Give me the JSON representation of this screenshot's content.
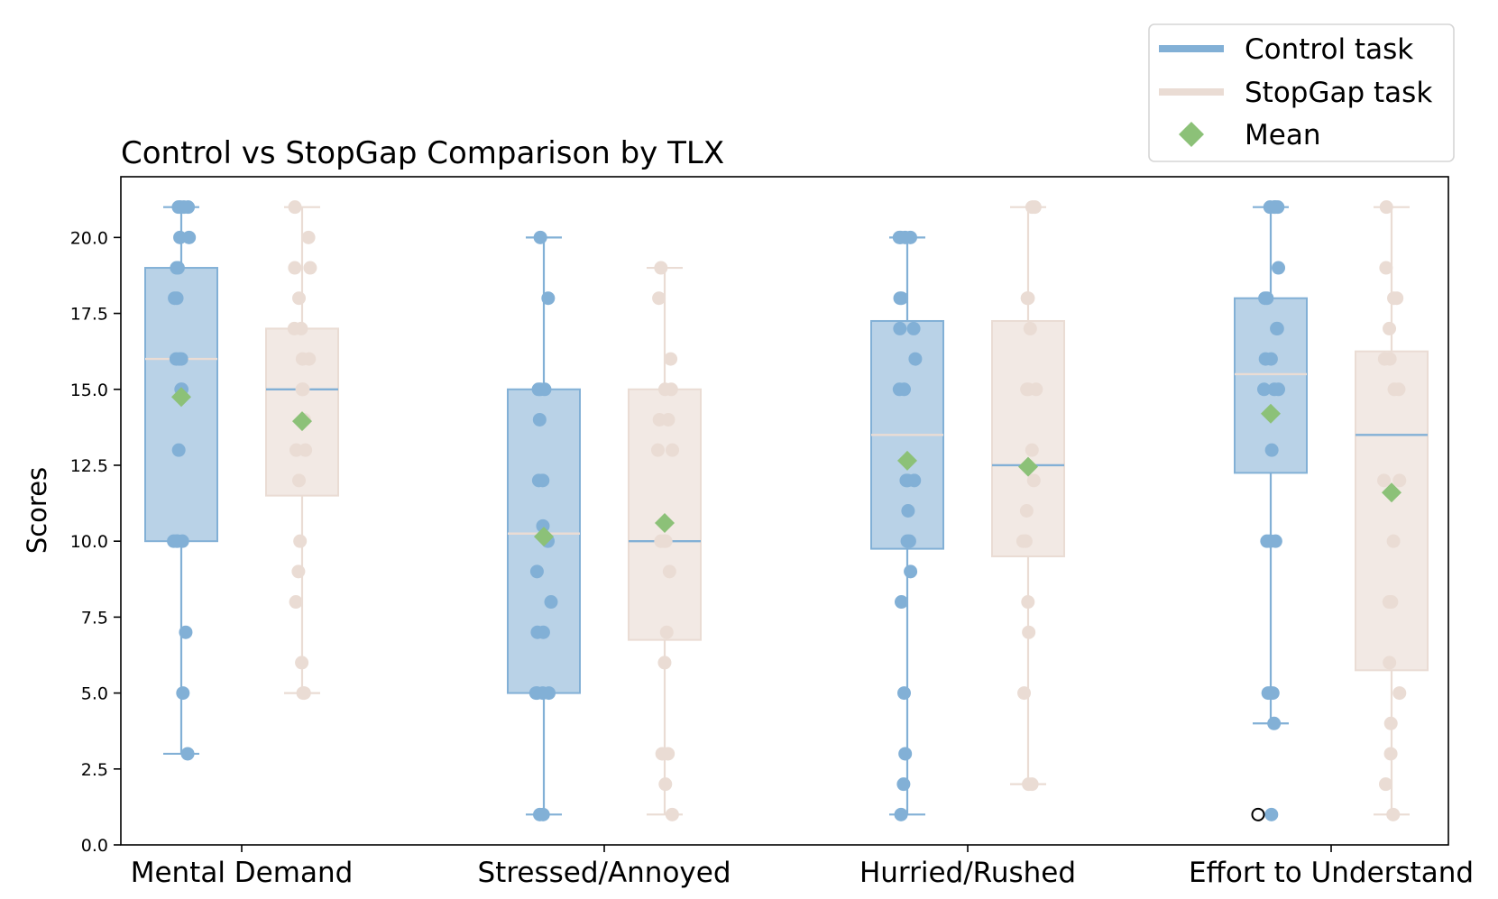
{
  "chart_data": {
    "type": "box",
    "title": "Control vs StopGap Comparison by TLX",
    "xlabel": "",
    "ylabel": "Scores",
    "ylim": [
      0,
      22
    ],
    "yticks": [
      0.0,
      2.5,
      5.0,
      7.5,
      10.0,
      12.5,
      15.0,
      17.5,
      20.0
    ],
    "ytick_labels": [
      "0.0",
      "2.5",
      "5.0",
      "7.5",
      "10.0",
      "12.5",
      "15.0",
      "17.5",
      "20.0"
    ],
    "grid": false,
    "legend_position": "top-right (above plot)",
    "categories": [
      "Mental Demand",
      "Stressed/Annoyed",
      "Hurried/Rushed",
      "Effort to Understand"
    ],
    "series": [
      {
        "name": "Control task",
        "color": "#82b0d6",
        "box_fill": "#b5d0e6",
        "median_color": "#eadcd4",
        "boxes": [
          {
            "whislo": 3,
            "q1": 10,
            "median": 16,
            "q3": 19,
            "whishi": 21,
            "mean": 14.75
          },
          {
            "whislo": 1,
            "q1": 5,
            "median": 10.25,
            "q3": 15,
            "whishi": 20,
            "mean": 10.15
          },
          {
            "whislo": 1,
            "q1": 9.75,
            "median": 13.5,
            "q3": 17.25,
            "whishi": 20,
            "mean": 12.65
          },
          {
            "whislo": 4,
            "q1": 12.25,
            "median": 15.5,
            "q3": 18,
            "whishi": 21,
            "mean": 14.2
          }
        ],
        "points": [
          [
            21,
            21,
            21,
            21,
            20,
            20,
            19,
            19,
            18,
            18,
            16,
            16,
            16,
            15,
            15,
            13,
            10,
            10,
            10,
            10,
            7,
            5,
            3
          ],
          [
            20,
            18,
            15,
            15,
            15,
            14,
            12,
            12,
            10.5,
            10,
            9,
            8,
            7,
            7,
            5,
            5,
            5,
            5,
            1,
            1
          ],
          [
            20,
            20,
            20,
            20,
            18,
            18,
            17,
            17,
            16,
            15,
            15,
            12,
            12,
            12,
            11,
            10,
            10,
            9,
            8,
            5,
            3,
            2,
            1
          ],
          [
            21,
            21,
            21,
            21,
            19,
            18,
            18,
            17,
            17,
            16,
            16,
            15,
            15,
            15,
            13,
            10,
            10,
            10,
            5,
            5,
            5,
            4,
            1
          ]
        ],
        "outliers": [
          [],
          [],
          [],
          [
            1
          ]
        ]
      },
      {
        "name": "StopGap task",
        "color": "#eadcd4",
        "box_fill": "#f1e8e3",
        "median_color": "#82b0d6",
        "boxes": [
          {
            "whislo": 5,
            "q1": 11.5,
            "median": 15,
            "q3": 17,
            "whishi": 21,
            "mean": 13.95
          },
          {
            "whislo": 1,
            "q1": 6.75,
            "median": 10,
            "q3": 15,
            "whishi": 19,
            "mean": 10.6
          },
          {
            "whislo": 2,
            "q1": 9.5,
            "median": 12.5,
            "q3": 17.25,
            "whishi": 21,
            "mean": 12.45
          },
          {
            "whislo": 1,
            "q1": 5.75,
            "median": 13.5,
            "q3": 16.25,
            "whishi": 21,
            "mean": 11.6
          }
        ],
        "points": [
          [
            21,
            20,
            19,
            19,
            18,
            17,
            17,
            16,
            16,
            15,
            15,
            14,
            13,
            13,
            12,
            10,
            9,
            8,
            6,
            5,
            5
          ],
          [
            19,
            18,
            16,
            15,
            15,
            14,
            14,
            13,
            13,
            10,
            10,
            10,
            9,
            7,
            6,
            3,
            3,
            2,
            1
          ],
          [
            21,
            21,
            18,
            18,
            18,
            17,
            15,
            15,
            15,
            13,
            12,
            11,
            10,
            10,
            10,
            8,
            7,
            5,
            2,
            2
          ],
          [
            21,
            19,
            18,
            18,
            17,
            16,
            16,
            15,
            15,
            12,
            12,
            10,
            8,
            8,
            6,
            5,
            4,
            3,
            2,
            1
          ]
        ],
        "outliers": [
          [],
          [],
          [],
          []
        ]
      }
    ],
    "mean_marker": {
      "name": "Mean",
      "color": "#8cc178",
      "shape": "diamond"
    },
    "legend": [
      "Control task",
      "StopGap task",
      "Mean"
    ]
  }
}
